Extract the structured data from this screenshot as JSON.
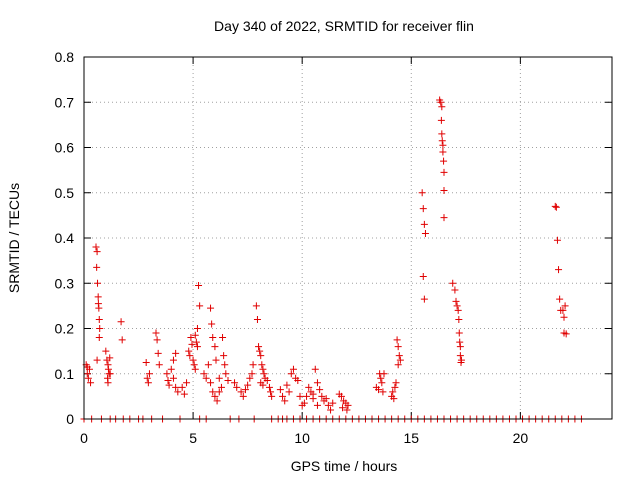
{
  "chart_data": {
    "type": "scatter",
    "title": "Day 340 of 2022, SRMTID for receiver flin",
    "xlabel": "GPS time / hours",
    "ylabel": "SRMTID / TECUs",
    "xlim": [
      0,
      24.2
    ],
    "ylim": [
      0,
      0.8
    ],
    "xticks": [
      0,
      5,
      10,
      15,
      20
    ],
    "xtick_labels": [
      "0",
      "5",
      "10",
      "15",
      "20"
    ],
    "yticks": [
      0,
      0.1,
      0.2,
      0.3,
      0.4,
      0.5,
      0.6,
      0.7,
      0.8
    ],
    "ytick_labels": [
      "0",
      "0.1",
      "0.2",
      "0.3",
      "0.4",
      "0.5",
      "0.6",
      "0.7",
      "0.8"
    ],
    "grid": true,
    "marker": "+",
    "color": "#e00000",
    "series": [
      {
        "name": "SRMTID",
        "points": [
          [
            0.1,
            0.12
          ],
          [
            0.15,
            0.1
          ],
          [
            0.2,
            0.09
          ],
          [
            0.25,
            0.11
          ],
          [
            0.3,
            0.08
          ],
          [
            0.15,
            0.115
          ],
          [
            0.55,
            0.38
          ],
          [
            0.6,
            0.37
          ],
          [
            0.58,
            0.335
          ],
          [
            0.62,
            0.3
          ],
          [
            0.65,
            0.27
          ],
          [
            0.66,
            0.255
          ],
          [
            0.68,
            0.245
          ],
          [
            0.7,
            0.22
          ],
          [
            0.72,
            0.2
          ],
          [
            0.7,
            0.18
          ],
          [
            0.6,
            0.13
          ],
          [
            1.0,
            0.15
          ],
          [
            1.05,
            0.13
          ],
          [
            1.1,
            0.12
          ],
          [
            1.12,
            0.11
          ],
          [
            1.15,
            0.1
          ],
          [
            1.08,
            0.09
          ],
          [
            1.1,
            0.08
          ],
          [
            1.2,
            0.1
          ],
          [
            1.18,
            0.135
          ],
          [
            1.7,
            0.215
          ],
          [
            1.75,
            0.175
          ],
          [
            2.85,
            0.125
          ],
          [
            2.9,
            0.09
          ],
          [
            2.95,
            0.08
          ],
          [
            3.0,
            0.1
          ],
          [
            3.3,
            0.19
          ],
          [
            3.35,
            0.175
          ],
          [
            3.4,
            0.145
          ],
          [
            3.45,
            0.12
          ],
          [
            3.8,
            0.1
          ],
          [
            3.85,
            0.085
          ],
          [
            3.9,
            0.075
          ],
          [
            4.0,
            0.11
          ],
          [
            4.1,
            0.09
          ],
          [
            4.2,
            0.07
          ],
          [
            4.3,
            0.06
          ],
          [
            4.1,
            0.13
          ],
          [
            4.2,
            0.145
          ],
          [
            4.5,
            0.07
          ],
          [
            4.6,
            0.055
          ],
          [
            4.7,
            0.08
          ],
          [
            4.8,
            0.15
          ],
          [
            4.85,
            0.14
          ],
          [
            4.9,
            0.18
          ],
          [
            4.95,
            0.165
          ],
          [
            5.0,
            0.13
          ],
          [
            5.05,
            0.12
          ],
          [
            5.1,
            0.11
          ],
          [
            5.15,
            0.17
          ],
          [
            5.2,
            0.16
          ],
          [
            5.25,
            0.295
          ],
          [
            5.3,
            0.25
          ],
          [
            5.2,
            0.2
          ],
          [
            5.1,
            0.185
          ],
          [
            5.5,
            0.1
          ],
          [
            5.6,
            0.09
          ],
          [
            5.7,
            0.12
          ],
          [
            5.8,
            0.245
          ],
          [
            5.85,
            0.21
          ],
          [
            5.9,
            0.18
          ],
          [
            6.0,
            0.16
          ],
          [
            6.05,
            0.13
          ],
          [
            5.8,
            0.08
          ],
          [
            5.9,
            0.06
          ],
          [
            6.0,
            0.05
          ],
          [
            6.1,
            0.04
          ],
          [
            6.2,
            0.06
          ],
          [
            6.3,
            0.07
          ],
          [
            6.35,
            0.18
          ],
          [
            6.4,
            0.14
          ],
          [
            6.45,
            0.12
          ],
          [
            6.5,
            0.1
          ],
          [
            6.6,
            0.085
          ],
          [
            6.2,
            0.09
          ],
          [
            6.9,
            0.08
          ],
          [
            7.0,
            0.07
          ],
          [
            7.2,
            0.06
          ],
          [
            7.3,
            0.05
          ],
          [
            7.4,
            0.065
          ],
          [
            7.5,
            0.075
          ],
          [
            7.6,
            0.09
          ],
          [
            7.7,
            0.1
          ],
          [
            7.75,
            0.12
          ],
          [
            7.9,
            0.25
          ],
          [
            7.95,
            0.22
          ],
          [
            8.0,
            0.16
          ],
          [
            8.05,
            0.15
          ],
          [
            8.1,
            0.14
          ],
          [
            8.15,
            0.12
          ],
          [
            8.2,
            0.11
          ],
          [
            8.25,
            0.1
          ],
          [
            8.3,
            0.09
          ],
          [
            8.4,
            0.085
          ],
          [
            8.5,
            0.07
          ],
          [
            8.55,
            0.06
          ],
          [
            8.6,
            0.05
          ],
          [
            8.1,
            0.08
          ],
          [
            8.2,
            0.075
          ],
          [
            9.0,
            0.065
          ],
          [
            9.1,
            0.05
          ],
          [
            9.2,
            0.04
          ],
          [
            9.3,
            0.075
          ],
          [
            9.4,
            0.06
          ],
          [
            9.5,
            0.1
          ],
          [
            9.6,
            0.11
          ],
          [
            9.7,
            0.09
          ],
          [
            9.8,
            0.085
          ],
          [
            9.9,
            0.05
          ],
          [
            10.0,
            0.03
          ],
          [
            10.1,
            0.035
          ],
          [
            10.2,
            0.05
          ],
          [
            10.3,
            0.07
          ],
          [
            10.4,
            0.06
          ],
          [
            10.5,
            0.055
          ],
          [
            10.6,
            0.11
          ],
          [
            10.7,
            0.08
          ],
          [
            10.8,
            0.065
          ],
          [
            10.9,
            0.05
          ],
          [
            11.0,
            0.04
          ],
          [
            11.1,
            0.045
          ],
          [
            11.2,
            0.03
          ],
          [
            11.3,
            0.02
          ],
          [
            11.4,
            0.035
          ],
          [
            10.5,
            0.045
          ],
          [
            10.7,
            0.03
          ],
          [
            11.7,
            0.055
          ],
          [
            11.8,
            0.05
          ],
          [
            11.9,
            0.04
          ],
          [
            12.0,
            0.035
          ],
          [
            12.1,
            0.03
          ],
          [
            11.85,
            0.025
          ],
          [
            12.05,
            0.02
          ],
          [
            13.4,
            0.07
          ],
          [
            13.5,
            0.065
          ],
          [
            13.55,
            0.1
          ],
          [
            13.6,
            0.09
          ],
          [
            13.65,
            0.08
          ],
          [
            13.7,
            0.06
          ],
          [
            13.75,
            0.1
          ],
          [
            14.1,
            0.05
          ],
          [
            14.15,
            0.06
          ],
          [
            14.2,
            0.045
          ],
          [
            14.25,
            0.07
          ],
          [
            14.3,
            0.08
          ],
          [
            14.35,
            0.175
          ],
          [
            14.4,
            0.16
          ],
          [
            14.45,
            0.14
          ],
          [
            14.5,
            0.13
          ],
          [
            14.4,
            0.12
          ],
          [
            15.5,
            0.5
          ],
          [
            15.55,
            0.465
          ],
          [
            15.6,
            0.43
          ],
          [
            15.65,
            0.41
          ],
          [
            15.55,
            0.315
          ],
          [
            15.6,
            0.265
          ],
          [
            16.3,
            0.705
          ],
          [
            16.35,
            0.7
          ],
          [
            16.4,
            0.69
          ],
          [
            16.38,
            0.66
          ],
          [
            16.4,
            0.63
          ],
          [
            16.42,
            0.615
          ],
          [
            16.45,
            0.605
          ],
          [
            16.45,
            0.59
          ],
          [
            16.48,
            0.57
          ],
          [
            16.5,
            0.545
          ],
          [
            16.5,
            0.505
          ],
          [
            16.5,
            0.445
          ],
          [
            16.9,
            0.3
          ],
          [
            17.0,
            0.285
          ],
          [
            17.05,
            0.26
          ],
          [
            17.1,
            0.25
          ],
          [
            17.15,
            0.24
          ],
          [
            17.18,
            0.22
          ],
          [
            17.2,
            0.19
          ],
          [
            17.22,
            0.17
          ],
          [
            17.25,
            0.16
          ],
          [
            17.25,
            0.14
          ],
          [
            17.28,
            0.125
          ],
          [
            17.3,
            0.13
          ],
          [
            21.6,
            0.47
          ],
          [
            21.65,
            0.468
          ],
          [
            21.7,
            0.395
          ],
          [
            21.75,
            0.33
          ],
          [
            21.8,
            0.265
          ],
          [
            21.85,
            0.24
          ],
          [
            21.95,
            0.24
          ],
          [
            22.0,
            0.225
          ],
          [
            22.05,
            0.25
          ],
          [
            22.0,
            0.19
          ],
          [
            22.1,
            0.188
          ]
        ],
        "zero_points_x": [
          0,
          0.35,
          0.8,
          1.2,
          1.45,
          1.8,
          2.1,
          2.5,
          2.7,
          3.1,
          3.6,
          4.4,
          5.3,
          5.6,
          6.7,
          7.1,
          7.8,
          8.6,
          8.9,
          9.1,
          9.3,
          9.6,
          9.9,
          10.2,
          10.5,
          10.8,
          11.1,
          11.4,
          11.7,
          12.0,
          12.3,
          12.6,
          12.9,
          13.2,
          13.5,
          13.8,
          14.1,
          14.4,
          14.7,
          15.0,
          15.3,
          15.6,
          15.9,
          16.2,
          16.5,
          16.8,
          17.1,
          17.4,
          17.7,
          18.0,
          18.3,
          18.6,
          18.9,
          19.2,
          19.5,
          19.8,
          20.1,
          20.4,
          20.7,
          21.0,
          21.3,
          21.6,
          21.9,
          22.2,
          22.5,
          22.8
        ]
      }
    ]
  }
}
